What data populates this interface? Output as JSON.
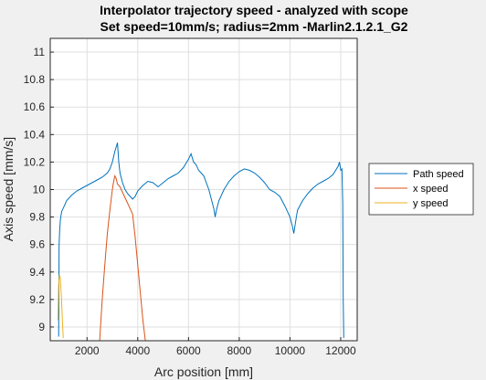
{
  "chart_data": {
    "type": "line",
    "title": "Interpolator trajectory speed - analyzed with scope",
    "subtitle": "Set speed=10mm/s; radius=2mm -Marlin2.1.2.1_G2",
    "xlabel": "Arc position [mm]",
    "ylabel": "Axis speed [mm/s]",
    "xlim": [
      550,
      12650
    ],
    "ylim": [
      8.9,
      11.1
    ],
    "xticks": [
      2000,
      4000,
      6000,
      8000,
      10000,
      12000
    ],
    "yticks": [
      9,
      9.2,
      9.4,
      9.6,
      9.8,
      10,
      10.2,
      10.4,
      10.6,
      10.8,
      11
    ],
    "grid": true,
    "legend_position": "right",
    "series": [
      {
        "name": "Path speed",
        "color": "#0072bd",
        "x": [
          880,
          900,
          920,
          950,
          1000,
          1100,
          1200,
          1400,
          1600,
          1800,
          2000,
          2200,
          2400,
          2600,
          2800,
          2900,
          3000,
          3050,
          3100,
          3150,
          3200,
          3250,
          3300,
          3400,
          3500,
          3600,
          3700,
          3800,
          3900,
          4000,
          4200,
          4400,
          4600,
          4800,
          5000,
          5200,
          5400,
          5600,
          5800,
          6000,
          6100,
          6200,
          6300,
          6400,
          6600,
          6800,
          7000,
          7050,
          7100,
          7200,
          7400,
          7600,
          7800,
          8000,
          8200,
          8400,
          8600,
          8800,
          9000,
          9200,
          9400,
          9600,
          9800,
          10000,
          10100,
          10150,
          10200,
          10250,
          10300,
          10500,
          10700,
          10900,
          11100,
          11300,
          11500,
          11700,
          11800,
          11900,
          11950,
          12000,
          12050,
          12080,
          12100,
          12120
        ],
        "y": [
          8.93,
          9.6,
          9.7,
          9.78,
          9.84,
          9.88,
          9.92,
          9.96,
          9.99,
          10.01,
          10.03,
          10.05,
          10.07,
          10.09,
          10.12,
          10.15,
          10.2,
          10.24,
          10.28,
          10.31,
          10.34,
          10.2,
          10.12,
          10.05,
          10.0,
          9.97,
          9.95,
          9.93,
          9.95,
          9.99,
          10.03,
          10.06,
          10.05,
          10.02,
          10.05,
          10.08,
          10.1,
          10.12,
          10.16,
          10.22,
          10.26,
          10.2,
          10.18,
          10.14,
          10.1,
          10.0,
          9.86,
          9.8,
          9.85,
          9.92,
          10.0,
          10.06,
          10.1,
          10.13,
          10.15,
          10.14,
          10.12,
          10.09,
          10.05,
          10.0,
          9.98,
          9.95,
          9.88,
          9.8,
          9.73,
          9.68,
          9.74,
          9.8,
          9.85,
          9.92,
          9.97,
          10.01,
          10.04,
          10.06,
          10.08,
          10.11,
          10.14,
          10.17,
          10.2,
          10.14,
          10.15,
          9.9,
          9.2,
          8.92
        ]
      },
      {
        "name": "x speed",
        "color": "#d95319",
        "x": [
          2500,
          2600,
          2700,
          2800,
          2900,
          3000,
          3050,
          3100,
          3150,
          3200,
          3300,
          3400,
          3500,
          3600,
          3700,
          3800,
          3900,
          4000,
          4100,
          4200,
          4300
        ],
        "y": [
          8.9,
          9.2,
          9.45,
          9.68,
          9.85,
          10.0,
          10.06,
          10.1,
          10.08,
          10.04,
          10.02,
          9.98,
          9.94,
          9.9,
          9.86,
          9.82,
          9.65,
          9.45,
          9.25,
          9.05,
          8.9
        ],
        "note_x_ignore": null
      },
      {
        "name": "y speed",
        "color": "#edb120",
        "x": [
          850,
          880,
          910,
          940,
          970,
          1000,
          1030,
          1060
        ],
        "y": [
          9.05,
          9.3,
          9.38,
          9.36,
          9.28,
          9.18,
          9.05,
          8.92
        ]
      }
    ]
  }
}
